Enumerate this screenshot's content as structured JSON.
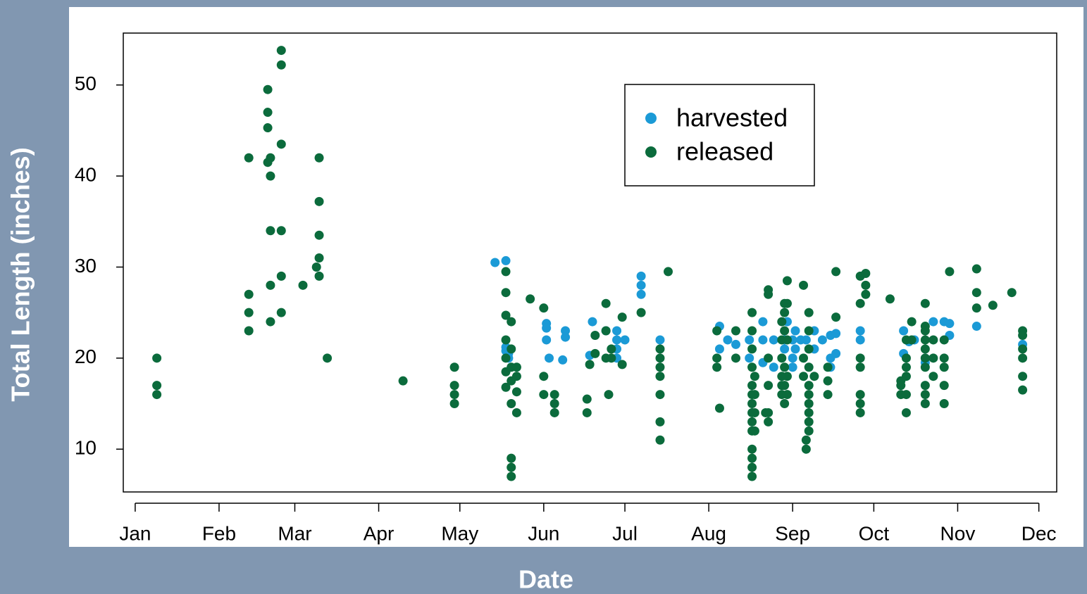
{
  "chart_data": {
    "type": "scatter",
    "x_label": "Date",
    "y_label": "Total Length (inches)",
    "xlim": [
      -3.4,
      341.6
    ],
    "ylim": [
      5.3,
      55.7
    ],
    "xticks": [
      {
        "value": 1,
        "label": "Jan"
      },
      {
        "value": 32,
        "label": "Feb"
      },
      {
        "value": 60,
        "label": "Mar"
      },
      {
        "value": 91,
        "label": "Apr"
      },
      {
        "value": 121,
        "label": "May"
      },
      {
        "value": 152,
        "label": "Jun"
      },
      {
        "value": 182,
        "label": "Jul"
      },
      {
        "value": 213,
        "label": "Aug"
      },
      {
        "value": 244,
        "label": "Sep"
      },
      {
        "value": 274,
        "label": "Oct"
      },
      {
        "value": 305,
        "label": "Nov"
      },
      {
        "value": 335,
        "label": "Dec"
      }
    ],
    "yticks": [
      10,
      20,
      30,
      40,
      50
    ],
    "legend": "top-right",
    "series": [
      {
        "name": "harvested",
        "color": "#1b9ad6",
        "x": [
          134,
          138,
          138,
          138,
          139,
          139,
          139,
          153,
          153,
          153,
          154,
          159,
          160,
          160,
          169,
          170,
          175,
          179,
          179,
          179,
          179,
          182,
          188,
          188,
          188,
          195,
          217,
          217,
          220,
          223,
          228,
          228,
          233,
          233,
          233,
          237,
          237,
          241,
          241,
          242,
          244,
          244,
          244,
          245,
          245,
          247,
          249,
          252,
          252,
          255,
          258,
          258,
          258,
          260,
          260,
          269,
          269,
          285,
          285,
          287,
          289,
          293,
          293,
          296,
          300,
          302,
          302,
          312,
          329
        ],
        "values": [
          30.5,
          30.7,
          21.2,
          20.8,
          21,
          20.5,
          20,
          23.8,
          23.3,
          22,
          20,
          19.8,
          23,
          22.3,
          20.3,
          24,
          23,
          23,
          22,
          21,
          20,
          22,
          29,
          28,
          27,
          22,
          23.5,
          21,
          22,
          21.5,
          22,
          20,
          24,
          22,
          19.5,
          22,
          19,
          21,
          22,
          24,
          22,
          20,
          19,
          23,
          21,
          22,
          22,
          23,
          21,
          22,
          22.5,
          20,
          19,
          22.7,
          20.5,
          23,
          22,
          23,
          20.5,
          21.8,
          22,
          20,
          19.5,
          24,
          24,
          23.8,
          22.5,
          23.5,
          21.5
        ]
      },
      {
        "name": "released",
        "color": "#0b6b3c",
        "x": [
          9,
          9,
          9,
          43,
          43,
          43,
          43,
          50,
          50,
          50,
          50,
          51,
          51,
          51,
          51,
          51,
          55,
          55,
          55,
          55,
          55,
          55,
          63,
          68,
          69,
          69,
          69,
          69,
          69,
          72,
          100,
          119,
          119,
          119,
          119,
          138,
          138,
          138,
          138,
          138,
          138,
          138,
          140,
          140,
          140,
          140,
          140,
          140,
          140,
          140,
          142,
          142,
          142,
          142,
          147,
          152,
          152,
          152,
          156,
          156,
          156,
          168,
          168,
          169,
          171,
          171,
          175,
          175,
          175,
          176,
          177,
          177,
          181,
          181,
          188,
          195,
          195,
          195,
          195,
          195,
          195,
          195,
          198,
          216,
          216,
          216,
          217,
          223,
          223,
          229,
          229,
          229,
          229,
          229,
          229,
          229,
          229,
          229,
          229,
          229,
          229,
          229,
          229,
          230,
          230,
          230,
          230,
          234,
          235,
          235,
          235,
          235,
          235,
          235,
          240,
          240,
          240,
          240,
          240,
          240,
          241,
          241,
          241,
          241,
          241,
          241,
          242,
          242,
          242,
          242,
          242,
          248,
          248,
          248,
          249,
          249,
          250,
          250,
          250,
          250,
          250,
          250,
          250,
          250,
          250,
          250,
          252,
          257,
          257,
          257,
          260,
          260,
          269,
          269,
          269,
          269,
          269,
          269,
          269,
          271,
          271,
          271,
          280,
          284,
          284,
          284,
          286,
          286,
          286,
          286,
          286,
          286,
          288,
          288,
          293,
          293,
          293,
          293,
          293,
          293,
          293,
          293,
          293,
          293,
          296,
          296,
          296,
          300,
          300,
          300,
          300,
          300,
          302,
          312,
          312,
          312,
          318,
          325,
          329,
          329,
          329,
          329,
          329,
          329
        ],
        "values": [
          20,
          17,
          16,
          42,
          27,
          25,
          23,
          49.5,
          47,
          45.3,
          41.5,
          42,
          40,
          34,
          28,
          24,
          53.8,
          52.2,
          43.5,
          34,
          29,
          25,
          28,
          30,
          42,
          37.2,
          33.5,
          31,
          29,
          20,
          17.5,
          19,
          17,
          16,
          15,
          29.5,
          27.2,
          24.7,
          22,
          20,
          18.5,
          16.8,
          24,
          21,
          19,
          17.5,
          15,
          9,
          8,
          7,
          19,
          18,
          16.3,
          14,
          26.5,
          25.5,
          18,
          16,
          16,
          15,
          14,
          15.5,
          14,
          19.3,
          22.5,
          20.5,
          26,
          23,
          20,
          16,
          21,
          20,
          24.5,
          19.3,
          25,
          21,
          20,
          19,
          18,
          16,
          13,
          11,
          29.5,
          23,
          20,
          19,
          14.5,
          23,
          20,
          25,
          23,
          21,
          19,
          17,
          16,
          15,
          14,
          13,
          12,
          10,
          9,
          8,
          7,
          18,
          16,
          14,
          12,
          14,
          27.5,
          27,
          20,
          17,
          14,
          13,
          24,
          22,
          20,
          18,
          17,
          16,
          26,
          25,
          23,
          19,
          17,
          15,
          28.5,
          26,
          22,
          18,
          16,
          28,
          20,
          18,
          11,
          10,
          25,
          23,
          21,
          19,
          17,
          16,
          15,
          14,
          13,
          12,
          18,
          19,
          17.5,
          16,
          29.5,
          24.5,
          29,
          26,
          20,
          19,
          16,
          15,
          14,
          29.3,
          28,
          27,
          26.5,
          17.5,
          17,
          16,
          22,
          20,
          19,
          18,
          16,
          14,
          24,
          22,
          26,
          23.5,
          23,
          22,
          21,
          20,
          19,
          17,
          16,
          15,
          22,
          20,
          18,
          22,
          20,
          19,
          17,
          15,
          29.5,
          29.8,
          27.2,
          25.5,
          25.8,
          27.2,
          23,
          22.5,
          21,
          20,
          18,
          16.5
        ]
      }
    ]
  }
}
